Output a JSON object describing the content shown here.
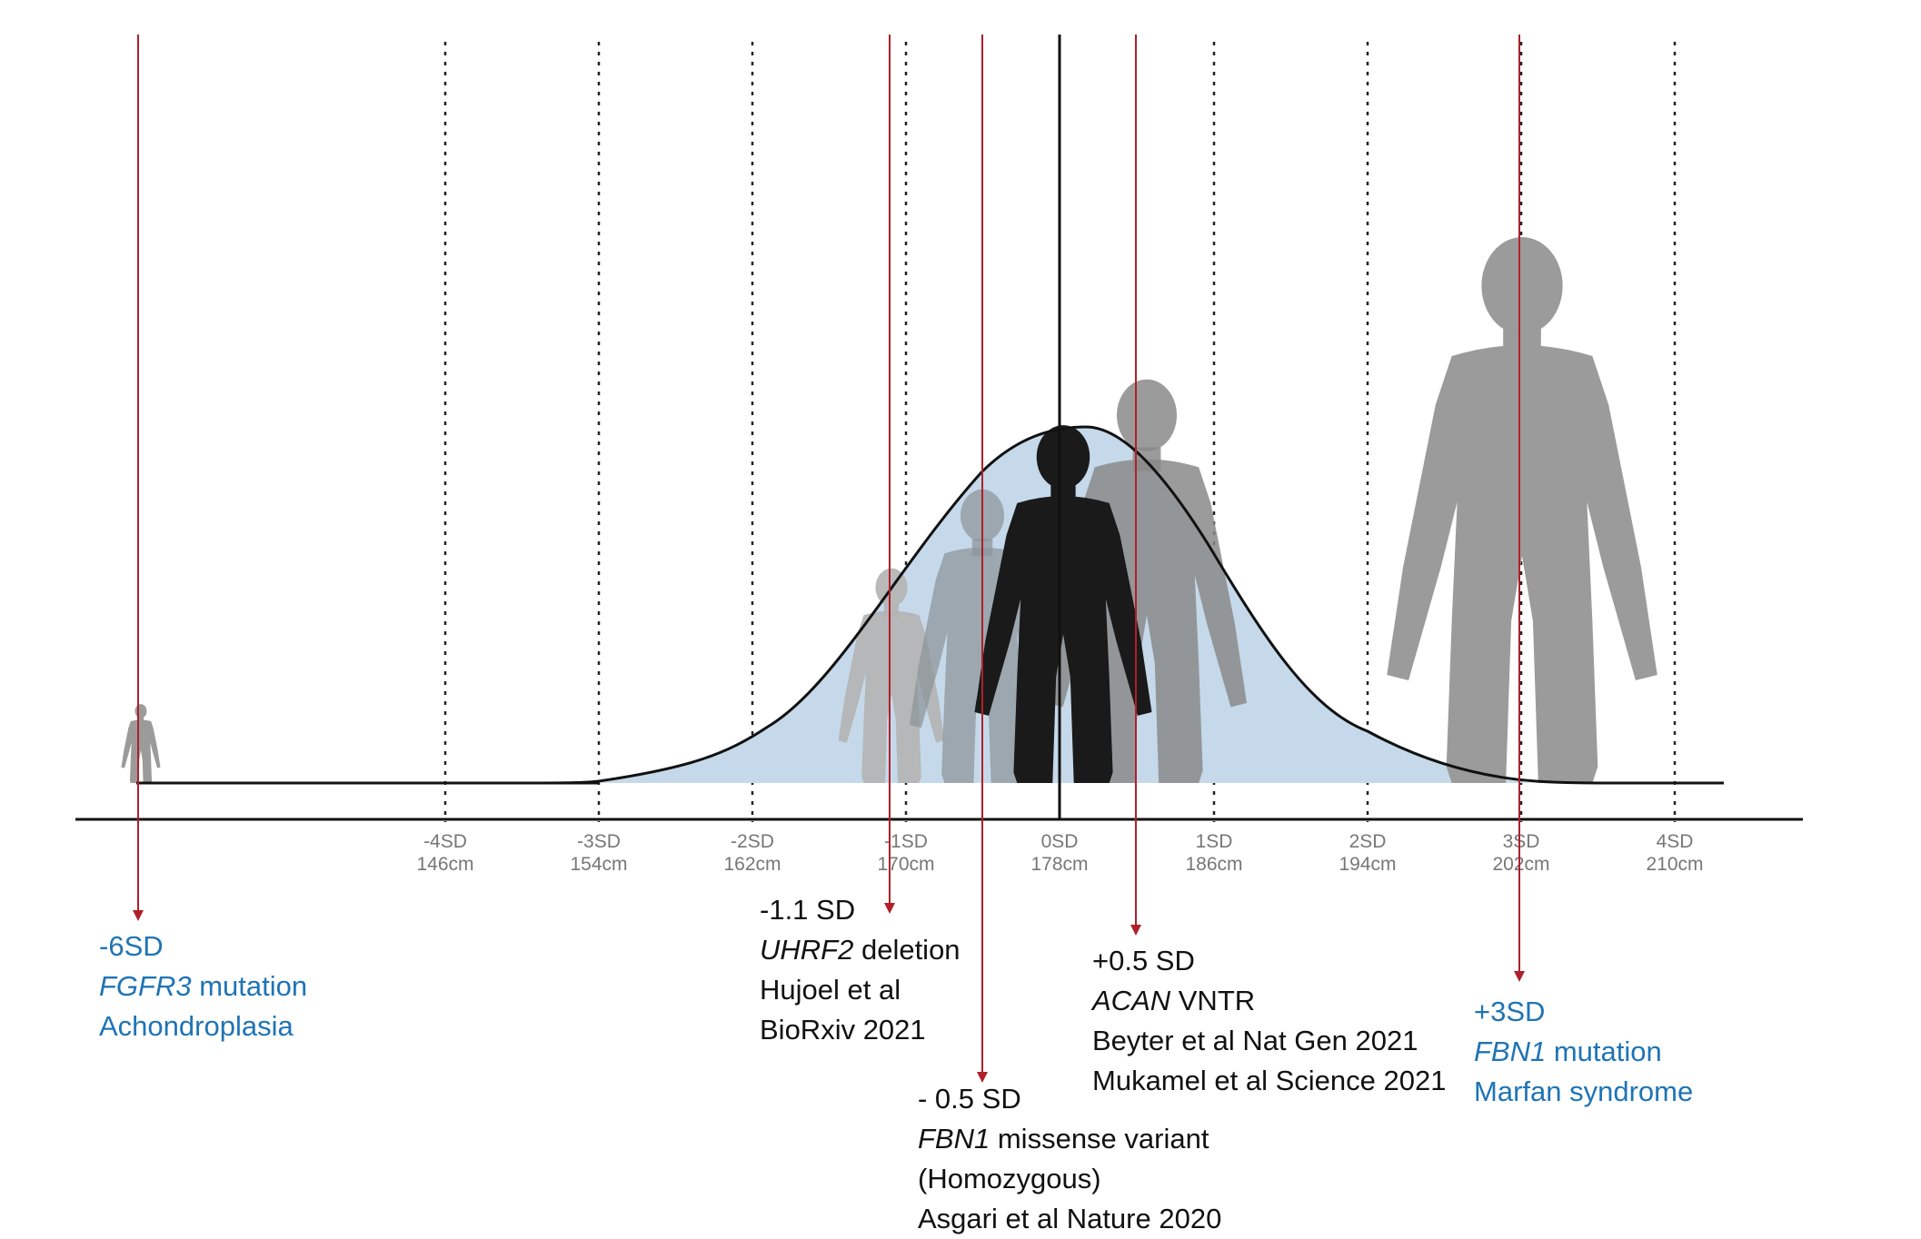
{
  "axis": {
    "ticks": [
      {
        "sd": "-4SD",
        "cm": "146cm"
      },
      {
        "sd": "-3SD",
        "cm": "154cm"
      },
      {
        "sd": "-2SD",
        "cm": "162cm"
      },
      {
        "sd": "-1SD",
        "cm": "170cm"
      },
      {
        "sd": "0SD",
        "cm": "178cm"
      },
      {
        "sd": "1SD",
        "cm": "186cm"
      },
      {
        "sd": "2SD",
        "cm": "194cm"
      },
      {
        "sd": "3SD",
        "cm": "202cm"
      },
      {
        "sd": "4SD",
        "cm": "210cm"
      }
    ]
  },
  "annotations": {
    "achondroplasia": {
      "sd": "-6SD",
      "gene": "FGFR3",
      "gene_rest": " mutation",
      "disease": "Achondroplasia"
    },
    "uhrf2": {
      "sd": "-1.1 SD",
      "gene": "UHRF2",
      "gene_rest": " deletion",
      "ref1": "Hujoel et al",
      "ref2": "BioRxiv 2021"
    },
    "fbn1_missense": {
      "sd": "- 0.5 SD",
      "gene": "FBN1",
      "gene_rest": " missense variant",
      "note": "(Homozygous)",
      "ref": "Asgari et al Nature 2020"
    },
    "acan": {
      "sd": "+0.5 SD",
      "gene": "ACAN",
      "gene_rest": " VNTR",
      "ref1": "Beyter et al Nat Gen 2021",
      "ref2": "Mukamel et al Science 2021"
    },
    "marfan": {
      "sd": "+3SD",
      "gene": "FBN1",
      "gene_rest": " mutation",
      "disease": "Marfan syndrome"
    }
  },
  "colors": {
    "blue_text": "#1f74b5",
    "marker_red": "#b0202a",
    "curve_fill": "#c5d9ea",
    "silhouette_gray": "#9b9b9b",
    "silhouette_black": "#1a1a1a"
  }
}
